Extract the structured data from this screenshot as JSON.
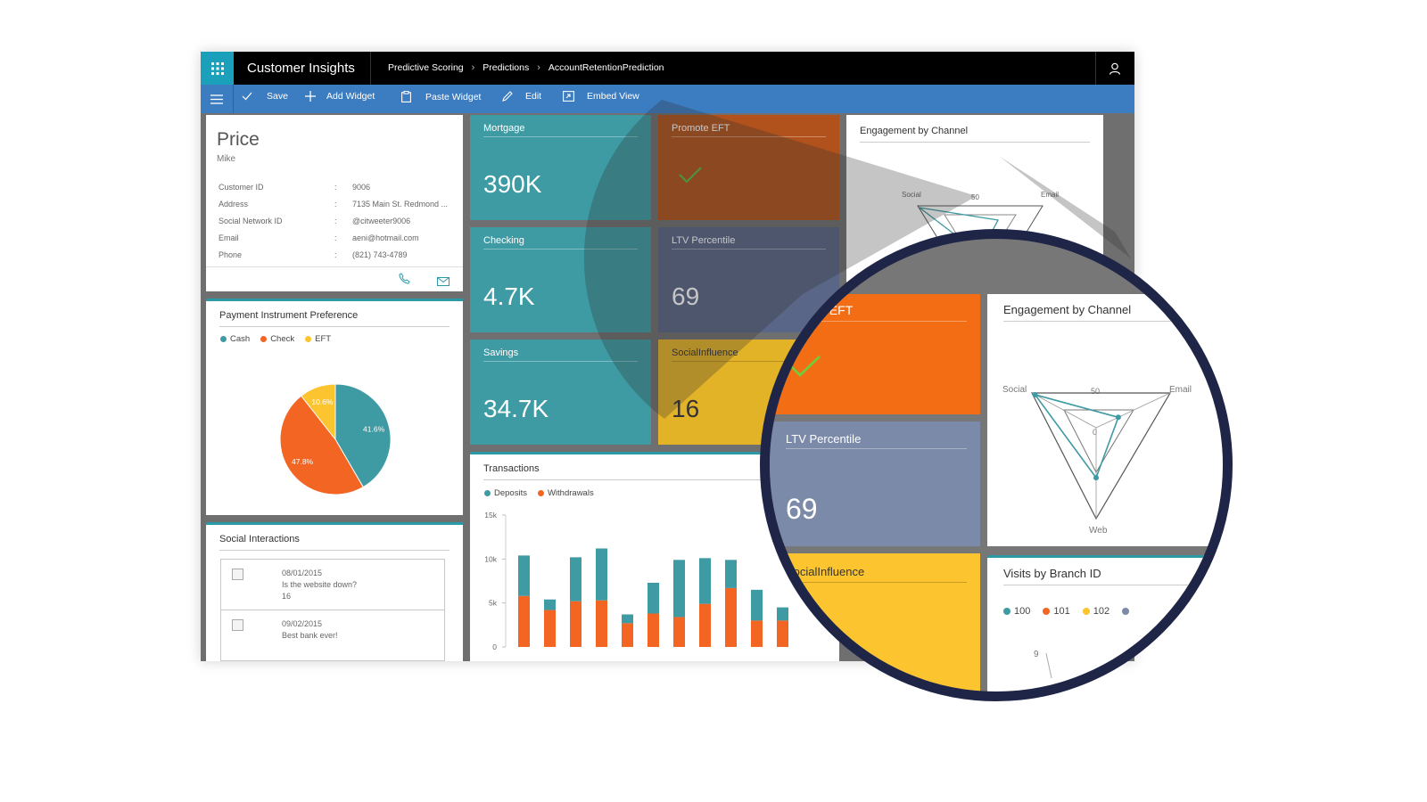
{
  "app": {
    "title": "Customer Insights",
    "breadcrumb": [
      "Predictive Scoring",
      "Predictions",
      "AccountRetentionPrediction"
    ]
  },
  "commands": {
    "save": "Save",
    "add_widget": "Add Widget",
    "paste_widget": "Paste Widget",
    "edit": "Edit",
    "embed_view": "Embed View"
  },
  "customer": {
    "last_name": "Price",
    "first_name": "Mike",
    "fields": [
      {
        "label": "Customer ID",
        "value": "9006"
      },
      {
        "label": "Address",
        "value": "7135 Main St. Redmond ..."
      },
      {
        "label": "Social Network ID",
        "value": "@citweeter9006"
      },
      {
        "label": "Email",
        "value": "aeni@hotmail.com"
      },
      {
        "label": "Phone",
        "value": "(821) 743-4789"
      }
    ],
    "separator": ":"
  },
  "payment": {
    "title": "Payment Instrument Preference",
    "chart_data": {
      "type": "pie",
      "categories": [
        "Cash",
        "Check",
        "EFT"
      ],
      "values": [
        41.6,
        47.8,
        10.6
      ],
      "labels": [
        "41.6%",
        "47.8%",
        "10.6%"
      ],
      "colors": [
        "#3e9aa3",
        "#f26522",
        "#fcc52f"
      ]
    }
  },
  "social": {
    "title": "Social Interactions",
    "items": [
      {
        "date": "08/01/2015",
        "text": "Is the website down?",
        "count": "16"
      },
      {
        "date": "09/02/2015",
        "text": "Best bank ever!"
      }
    ]
  },
  "tiles": {
    "mortgage": {
      "label": "Mortgage",
      "value": "390K"
    },
    "promote_eft": {
      "label": "Promote EFT"
    },
    "checking": {
      "label": "Checking",
      "value": "4.7K"
    },
    "ltv": {
      "label": "LTV Percentile",
      "value": "69"
    },
    "savings": {
      "label": "Savings",
      "value": "34.7K"
    },
    "social_influence": {
      "label": "SocialInfluence",
      "value": "16"
    }
  },
  "engagement": {
    "title": "Engagement by Channel",
    "axes": [
      "Social",
      "Email",
      "Web"
    ],
    "ticks": [
      "50",
      "0"
    ],
    "chart_data": {
      "type": "radar",
      "categories": [
        "Social",
        "Email",
        "Web"
      ],
      "series": [
        {
          "values": [
            95,
            30,
            55
          ]
        }
      ],
      "rlim": [
        0,
        100
      ]
    }
  },
  "transactions": {
    "title": "Transactions",
    "legend": [
      "Deposits",
      "Withdrawals"
    ],
    "yticks": [
      "15k",
      "10k",
      "5k",
      "0"
    ],
    "chart_data": {
      "type": "bar",
      "stacked": true,
      "ylim": [
        0,
        15000
      ],
      "series": [
        {
          "name": "Deposits",
          "values": [
            4600,
            1200,
            5000,
            5900,
            1000,
            3500,
            6500,
            5200,
            3200,
            3500,
            1500
          ]
        },
        {
          "name": "Withdrawals",
          "values": [
            5800,
            4200,
            5200,
            5300,
            2700,
            3800,
            3400,
            4900,
            6700,
            3000,
            3000
          ]
        }
      ]
    }
  },
  "visits": {
    "title": "Visits by Branch ID",
    "legend": [
      "100",
      "101",
      "102"
    ],
    "tick": "9"
  },
  "colors": {
    "teal": "#3e9aa3",
    "orange": "#f26522",
    "yellow": "#fcc52f",
    "slate": "#7b8aa8",
    "ring": "#1e2547",
    "brand_blue": "#3c7cc1"
  }
}
